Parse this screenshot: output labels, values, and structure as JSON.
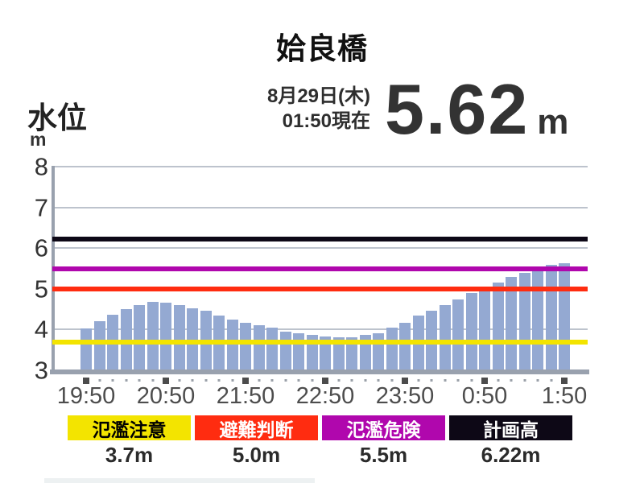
{
  "header": {
    "title": "姶良橋",
    "axis_label": "水位",
    "axis_unit": "m",
    "date_line1": "8月29日(木)",
    "date_line2": "01:50現在",
    "current_value": "5.62",
    "current_unit": "m"
  },
  "chart_data": {
    "type": "bar",
    "title": "姶良橋",
    "ylabel": "水位",
    "y_unit": "m",
    "ylim": [
      3,
      8
    ],
    "yticks": [
      8,
      7,
      6,
      5,
      4,
      3
    ],
    "grid": true,
    "bar_color": "#94a9d2",
    "x": [
      "19:50",
      "20:00",
      "20:10",
      "20:20",
      "20:30",
      "20:40",
      "20:50",
      "21:00",
      "21:10",
      "21:20",
      "21:30",
      "21:40",
      "21:50",
      "22:00",
      "22:10",
      "22:20",
      "22:30",
      "22:40",
      "22:50",
      "23:00",
      "23:10",
      "23:20",
      "23:30",
      "23:40",
      "23:50",
      "0:00",
      "0:10",
      "0:20",
      "0:30",
      "0:40",
      "0:50",
      "1:00",
      "1:10",
      "1:20",
      "1:30",
      "1:40",
      "1:50"
    ],
    "values": [
      4.02,
      4.2,
      4.37,
      4.51,
      4.61,
      4.67,
      4.66,
      4.6,
      4.53,
      4.46,
      4.34,
      4.25,
      4.17,
      4.1,
      4.05,
      3.94,
      3.91,
      3.86,
      3.83,
      3.81,
      3.81,
      3.86,
      3.91,
      4.04,
      4.17,
      4.34,
      4.47,
      4.6,
      4.74,
      4.89,
      5.03,
      5.16,
      5.3,
      5.4,
      5.55,
      5.58,
      5.62
    ],
    "major_xtick_labels": [
      "19:50",
      "20:50",
      "21:50",
      "22:50",
      "23:50",
      "0:50",
      "1:50"
    ],
    "minor_xtick_interval_minutes": 10,
    "thresholds": [
      {
        "name": "氾濫注意",
        "value": 3.7,
        "color": "#f3e400"
      },
      {
        "name": "避難判断",
        "value": 5.0,
        "color": "#ff2c10"
      },
      {
        "name": "氾濫危険",
        "value": 5.5,
        "color": "#b007ad"
      },
      {
        "name": "計画高",
        "value": 6.22,
        "color": "#0d0816"
      }
    ]
  },
  "legend": {
    "items": [
      {
        "label": "氾濫注意",
        "value": "3.7m",
        "bg": "#f3e400",
        "fg": "#000000"
      },
      {
        "label": "避難判断",
        "value": "5.0m",
        "bg": "#ff2c10",
        "fg": "#ffffff"
      },
      {
        "label": "氾濫危険",
        "value": "5.5m",
        "bg": "#b007ad",
        "fg": "#ffffff"
      },
      {
        "label": "計画高",
        "value": "6.22m",
        "bg": "#0d0816",
        "fg": "#ffffff"
      }
    ]
  }
}
